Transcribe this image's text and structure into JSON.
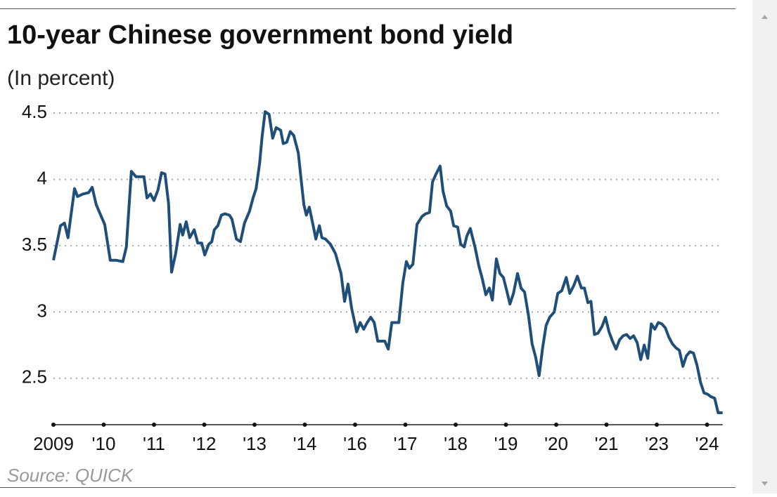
{
  "chart_data": {
    "type": "line",
    "title": "10-year Chinese government bond yield",
    "subtitle": "(In percent)",
    "source": "Source: QUICK",
    "color": "#1f4e79",
    "grid": true,
    "xlim": [
      0,
      13.31
    ],
    "ylim": [
      2.15,
      4.5
    ],
    "yticks": [
      2.5,
      3,
      3.5,
      4,
      4.5
    ],
    "xticks": [
      {
        "value": 0,
        "label": "2009"
      },
      {
        "value": 1,
        "label": "'10"
      },
      {
        "value": 2,
        "label": "'11"
      },
      {
        "value": 3,
        "label": "'12"
      },
      {
        "value": 4,
        "label": "'13"
      },
      {
        "value": 5,
        "label": "'14"
      },
      {
        "value": 6,
        "label": "'16"
      },
      {
        "value": 7,
        "label": "'17"
      },
      {
        "value": 8,
        "label": "'18"
      },
      {
        "value": 9,
        "label": "'19"
      },
      {
        "value": 10,
        "label": "'20"
      },
      {
        "value": 11,
        "label": "'21"
      },
      {
        "value": 12,
        "label": "'23"
      },
      {
        "value": 13,
        "label": "'24"
      }
    ],
    "x": [
      0,
      0.06,
      0.14,
      0.22,
      0.29,
      0.42,
      0.48,
      0.59,
      0.7,
      0.77,
      0.85,
      0.94,
      1.02,
      1.13,
      1.24,
      1.38,
      1.45,
      1.55,
      1.64,
      1.72,
      1.8,
      1.86,
      1.93,
      2.0,
      2.08,
      2.15,
      2.22,
      2.29,
      2.35,
      2.43,
      2.52,
      2.57,
      2.64,
      2.71,
      2.8,
      2.87,
      2.95,
      3.01,
      3.09,
      3.15,
      3.2,
      3.27,
      3.34,
      3.41,
      3.5,
      3.55,
      3.64,
      3.72,
      3.8,
      3.9,
      3.97,
      4.03,
      4.1,
      4.15,
      4.21,
      4.29,
      4.36,
      4.43,
      4.52,
      4.57,
      4.64,
      4.71,
      4.78,
      4.87,
      4.92,
      4.98,
      5.03,
      5.09,
      5.16,
      5.22,
      5.29,
      5.34,
      5.41,
      5.51,
      5.61,
      5.72,
      5.79,
      5.86,
      5.93,
      6.03,
      6.1,
      6.17,
      6.24,
      6.31,
      6.38,
      6.45,
      6.59,
      6.66,
      6.73,
      6.87,
      6.95,
      7.02,
      7.08,
      7.15,
      7.23,
      7.33,
      7.4,
      7.48,
      7.54,
      7.61,
      7.69,
      7.75,
      7.82,
      7.9,
      7.96,
      8.04,
      8.1,
      8.17,
      8.22,
      8.29,
      8.39,
      8.46,
      8.53,
      8.6,
      8.67,
      8.73,
      8.81,
      8.88,
      8.95,
      9.01,
      9.08,
      9.15,
      9.23,
      9.3,
      9.37,
      9.45,
      9.52,
      9.59,
      9.66,
      9.73,
      9.8,
      9.87,
      9.96,
      10.03,
      10.11,
      10.2,
      10.27,
      10.35,
      10.42,
      10.5,
      10.56,
      10.63,
      10.69,
      10.76,
      10.83,
      10.91,
      10.98,
      11.05,
      11.12,
      11.19,
      11.26,
      11.33,
      11.4,
      11.47,
      11.54,
      11.61,
      11.68,
      11.75,
      11.82,
      11.89,
      11.96,
      12.03,
      12.1,
      12.17,
      12.24,
      12.31,
      12.38,
      12.45,
      12.52,
      12.59,
      12.66,
      12.73,
      12.8,
      12.87,
      12.94,
      13.01,
      13.08,
      13.15,
      13.22,
      13.31
    ],
    "values": [
      3.39,
      3.5,
      3.65,
      3.67,
      3.56,
      3.93,
      3.87,
      3.89,
      3.9,
      3.94,
      3.81,
      3.73,
      3.66,
      3.39,
      3.39,
      3.38,
      3.49,
      4.06,
      4.02,
      4.02,
      4.02,
      3.86,
      3.89,
      3.84,
      3.92,
      4.05,
      4.04,
      3.82,
      3.3,
      3.44,
      3.66,
      3.58,
      3.68,
      3.56,
      3.62,
      3.52,
      3.52,
      3.43,
      3.51,
      3.53,
      3.62,
      3.65,
      3.73,
      3.74,
      3.73,
      3.7,
      3.55,
      3.53,
      3.67,
      3.76,
      3.86,
      3.93,
      4.12,
      4.32,
      4.51,
      4.49,
      4.31,
      4.39,
      4.37,
      4.27,
      4.28,
      4.36,
      4.33,
      4.2,
      4.02,
      3.81,
      3.73,
      3.79,
      3.66,
      3.55,
      3.65,
      3.56,
      3.55,
      3.51,
      3.44,
      3.29,
      3.08,
      3.21,
      3.03,
      2.85,
      2.92,
      2.87,
      2.92,
      2.96,
      2.92,
      2.78,
      2.78,
      2.72,
      2.92,
      2.92,
      3.22,
      3.38,
      3.33,
      3.36,
      3.66,
      3.72,
      3.74,
      3.75,
      3.98,
      4.04,
      4.1,
      3.91,
      3.8,
      3.76,
      3.65,
      3.64,
      3.51,
      3.49,
      3.57,
      3.63,
      3.48,
      3.35,
      3.25,
      3.13,
      3.18,
      3.09,
      3.4,
      3.29,
      3.26,
      3.17,
      3.06,
      3.14,
      3.29,
      3.18,
      3.15,
      2.97,
      2.76,
      2.66,
      2.52,
      2.73,
      2.9,
      2.96,
      3.0,
      3.14,
      3.16,
      3.26,
      3.14,
      3.2,
      3.27,
      3.18,
      3.18,
      3.07,
      3.08,
      2.83,
      2.84,
      2.89,
      2.96,
      2.85,
      2.78,
      2.72,
      2.79,
      2.82,
      2.83,
      2.8,
      2.82,
      2.77,
      2.64,
      2.75,
      2.65,
      2.91,
      2.87,
      2.92,
      2.91,
      2.88,
      2.81,
      2.76,
      2.73,
      2.71,
      2.59,
      2.67,
      2.7,
      2.69,
      2.6,
      2.47,
      2.39,
      2.38,
      2.36,
      2.35,
      2.24,
      2.24
    ]
  }
}
